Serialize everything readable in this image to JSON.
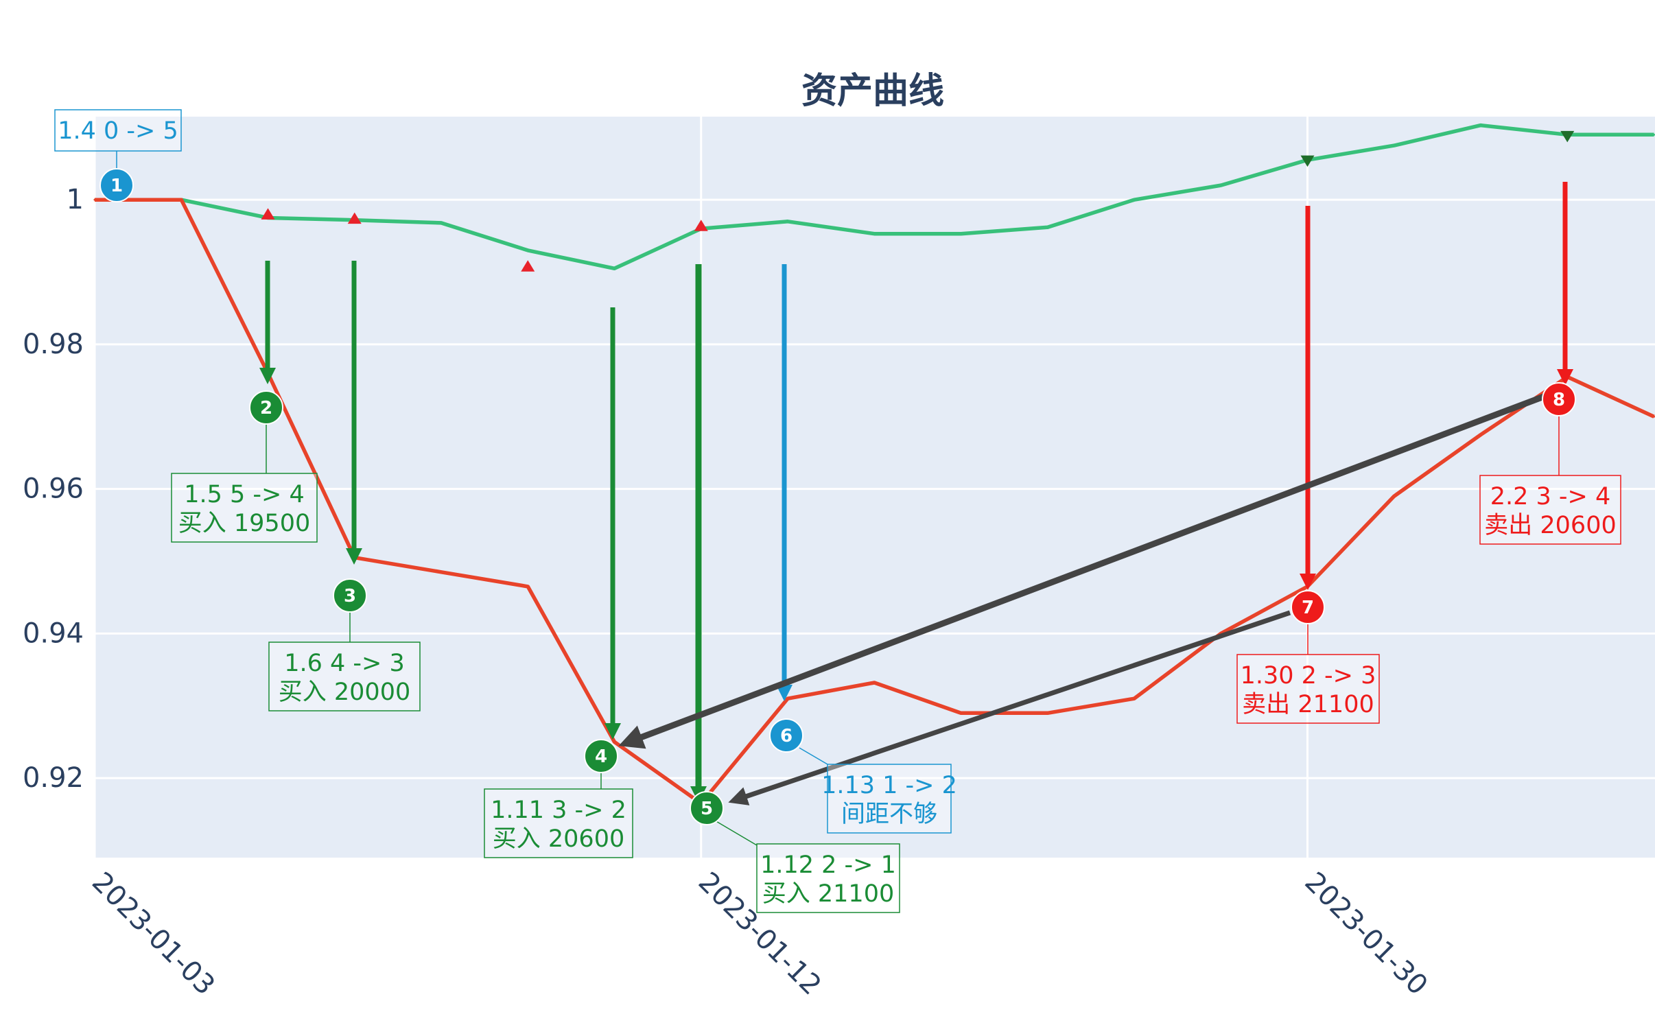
{
  "chart_data": {
    "type": "line",
    "title": "资产曲线",
    "xlabel": "",
    "ylabel": "",
    "x": [
      "2023-01-03",
      "2023-01-04",
      "2023-01-05",
      "2023-01-06",
      "2023-01-09",
      "2023-01-10",
      "2023-01-11",
      "2023-01-12",
      "2023-01-13",
      "2023-01-16",
      "2023-01-17",
      "2023-01-18",
      "2023-01-19",
      "2023-01-20",
      "2023-01-30",
      "2023-01-31",
      "2023-02-01",
      "2023-02-02",
      "2023-02-03"
    ],
    "xticks": [
      "2023-01-03",
      "2023-01-12",
      "2023-01-30"
    ],
    "ylim": [
      0.909,
      1.0115
    ],
    "yticks": [
      0.92,
      0.94,
      0.96,
      0.98,
      1
    ],
    "ytick_labels": [
      "0.92",
      "0.94",
      "0.96",
      "0.98",
      "1"
    ],
    "grid": true,
    "legend": "none",
    "series": [
      {
        "color": "#38c07a",
        "values": [
          1.0,
          1.0,
          0.9975,
          0.9972,
          0.9968,
          0.993,
          0.9905,
          0.996,
          0.997,
          0.9953,
          0.9953,
          0.9962,
          1.0,
          1.002,
          1.0055,
          1.0075,
          1.0103,
          1.009,
          1.009
        ]
      },
      {
        "color": "#e8432a",
        "values": [
          1.0,
          1.0,
          0.976,
          0.9505,
          0.9485,
          0.9465,
          0.925,
          0.9165,
          0.931,
          0.9332,
          0.929,
          0.929,
          0.931,
          0.94,
          0.9465,
          0.959,
          0.9675,
          0.9755,
          0.97
        ]
      }
    ],
    "markers": [
      {
        "x": "2023-01-05",
        "y": 0.9978,
        "symbol": "triangle-up",
        "color": "#e8222a"
      },
      {
        "x": "2023-01-06",
        "y": 0.9972,
        "symbol": "triangle-up",
        "color": "#e8222a"
      },
      {
        "x": "2023-01-10",
        "y": 0.9906,
        "symbol": "triangle-up",
        "color": "#e8222a"
      },
      {
        "x": "2023-01-12",
        "y": 0.9962,
        "symbol": "triangle-up",
        "color": "#e8222a"
      },
      {
        "x": "2023-01-30",
        "y": 1.0056,
        "symbol": "triangle-down",
        "color": "#1f6e2a"
      },
      {
        "x": "2023-02-02",
        "y": 1.009,
        "symbol": "triangle-down",
        "color": "#1f6e2a"
      }
    ],
    "annotations": [
      {
        "num": "1",
        "color": "#1a95d0",
        "lines": [
          "1.4 0 -> 5"
        ]
      },
      {
        "num": "2",
        "color": "#1a8c35",
        "lines": [
          "1.5 5 -> 4",
          "买入 19500"
        ]
      },
      {
        "num": "3",
        "color": "#1a8c35",
        "lines": [
          "1.6 4 -> 3",
          "买入 20000"
        ]
      },
      {
        "num": "4",
        "color": "#1a8c35",
        "lines": [
          "1.11 3 -> 2",
          "买入 20600"
        ]
      },
      {
        "num": "5",
        "color": "#1a8c35",
        "lines": [
          "1.12 2 -> 1",
          " 买入 21100"
        ]
      },
      {
        "num": "6",
        "color": "#1a95d0",
        "lines": [
          "1.13 1 -> 2",
          "间距不够"
        ]
      },
      {
        "num": "7",
        "color": "#ee1b1b",
        "lines": [
          "1.30 2 -> 3",
          " 卖出 21100"
        ]
      },
      {
        "num": "8",
        "color": "#ee1b1b",
        "lines": [
          "2.2 3 -> 4",
          " 卖出 20600"
        ]
      }
    ]
  }
}
